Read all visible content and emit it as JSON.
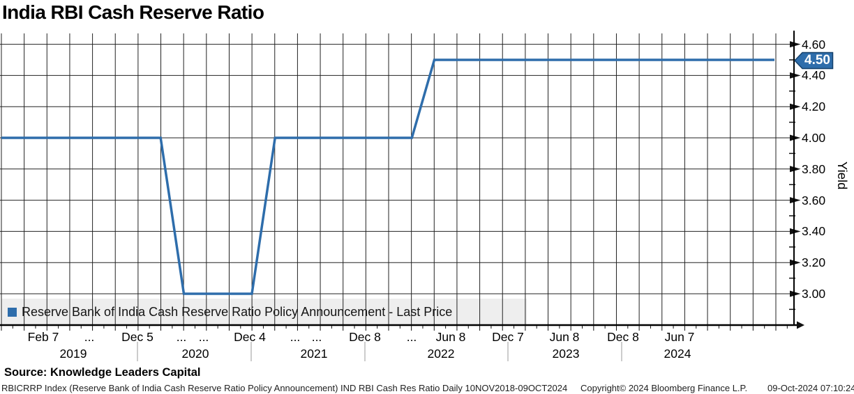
{
  "title": "India RBI Cash Reserve Ratio",
  "legend": {
    "marker_icon": "legend-square-icon",
    "marker_color": "#2e6dab",
    "label": "Reserve Bank of India Cash Reserve Ratio Policy Announcement - Last Price"
  },
  "yaxis": {
    "title": "Yield",
    "ticks": [
      "4.60",
      "4.40",
      "4.20",
      "4.00",
      "3.80",
      "3.60",
      "3.40",
      "3.20",
      "3.00"
    ],
    "last_price_badge": "4.50",
    "badge_color": "#2e6dab"
  },
  "xaxis": {
    "labels": [
      "Feb 7",
      "...",
      "Dec 5",
      "...",
      "...",
      "Dec 4",
      "...",
      "...",
      "Dec 8",
      "...",
      "Jun 8",
      "Dec 7",
      "Jun 8",
      "Dec 8",
      "Jun 7"
    ],
    "years": [
      "2019",
      "2020",
      "2021",
      "2022",
      "2023",
      "2024"
    ]
  },
  "source": "Source: Knowledge Leaders Capital",
  "footer": {
    "left": "RBICRRP Index (Reserve Bank of India Cash Reserve Ratio Policy Announcement) IND RBI Cash Res Ratio  Daily 10NOV2018-09OCT2024",
    "copyright": "Copyright© 2024 Bloomberg Finance L.P.",
    "timestamp": "09-Oct-2024 07:10:24"
  },
  "chart_data": {
    "type": "line",
    "title": "India RBI Cash Reserve Ratio",
    "ylabel": "Yield",
    "x_range": [
      "10NOV2018",
      "09OCT2024"
    ],
    "ylim": [
      2.9,
      4.7
    ],
    "y_ticks": [
      3.0,
      3.2,
      3.4,
      3.6,
      3.8,
      4.0,
      4.2,
      4.4,
      4.6
    ],
    "grid": true,
    "legend_position": "bottom-left",
    "last_price": 4.5,
    "series": [
      {
        "name": "Reserve Bank of India Cash Reserve Ratio Policy Announcement - Last Price",
        "color": "#2e6dab",
        "points": [
          {
            "x_frac": 0.0,
            "value": 4.0
          },
          {
            "x_frac": 0.206,
            "value": 4.0
          },
          {
            "x_frac": 0.236,
            "value": 3.0
          },
          {
            "x_frac": 0.324,
            "value": 3.0
          },
          {
            "x_frac": 0.354,
            "value": 4.0
          },
          {
            "x_frac": 0.531,
            "value": 4.0
          },
          {
            "x_frac": 0.56,
            "value": 4.5
          },
          {
            "x_frac": 1.0,
            "value": 4.5
          }
        ]
      }
    ]
  }
}
